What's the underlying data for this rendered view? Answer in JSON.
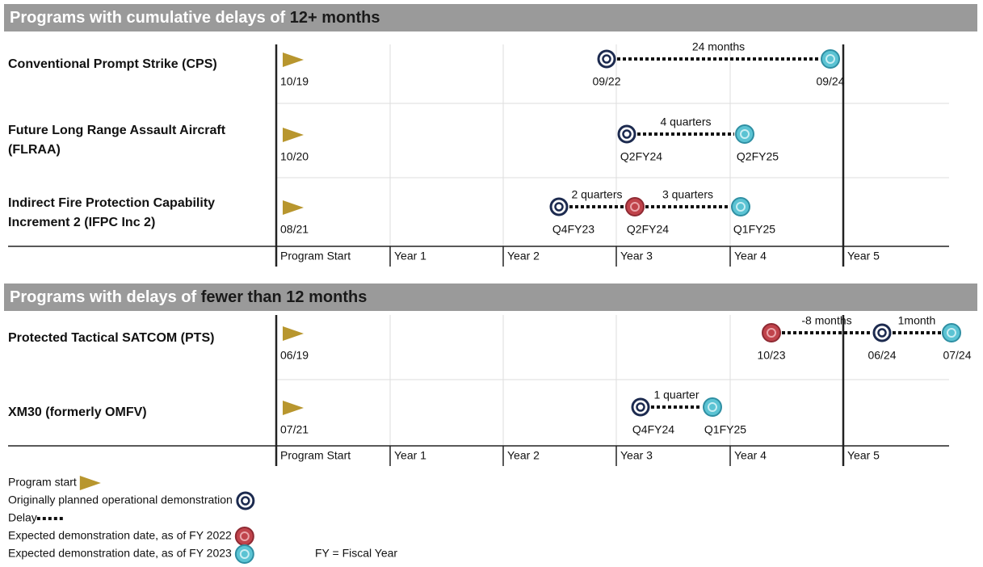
{
  "sections": [
    {
      "title_prefix": "Programs with cumulative delays of ",
      "title_emphasis": "12+ months",
      "programs": [
        {
          "name_lines": [
            "Conventional Prompt Strike (CPS)"
          ],
          "start": "10/19",
          "milestones": [
            {
              "label": "09/22",
              "kind": "planned"
            },
            {
              "label": "09/24",
              "kind": "fy2023"
            }
          ],
          "delays": [
            "24 months"
          ]
        },
        {
          "name_lines": [
            "Future Long Range Assault Aircraft",
            "(FLRAA)"
          ],
          "start": "10/20",
          "milestones": [
            {
              "label": "Q2FY24",
              "kind": "planned"
            },
            {
              "label": "Q2FY25",
              "kind": "fy2023"
            }
          ],
          "delays": [
            "4 quarters"
          ]
        },
        {
          "name_lines": [
            "Indirect Fire Protection Capability",
            "Increment 2 (IFPC Inc 2)"
          ],
          "start": "08/21",
          "milestones": [
            {
              "label": "Q4FY23",
              "kind": "planned"
            },
            {
              "label": "Q2FY24",
              "kind": "fy2022"
            },
            {
              "label": "Q1FY25",
              "kind": "fy2023"
            }
          ],
          "delays": [
            "2 quarters",
            "3 quarters"
          ]
        }
      ],
      "axis": [
        "Program Start",
        "Year 1",
        "Year 2",
        "Year 3",
        "Year 4",
        "Year 5"
      ]
    },
    {
      "title_prefix": "Programs with delays of ",
      "title_emphasis": "fewer than 12 months",
      "programs": [
        {
          "name_lines": [
            "Protected Tactical SATCOM (PTS)"
          ],
          "start": "06/19",
          "milestones": [
            {
              "label": "10/23",
              "kind": "fy2022"
            },
            {
              "label": "06/24",
              "kind": "planned"
            },
            {
              "label": "07/24",
              "kind": "fy2023"
            }
          ],
          "delays": [
            "-8 months",
            "1month"
          ]
        },
        {
          "name_lines": [
            "XM30 (formerly OMFV)"
          ],
          "start": "07/21",
          "milestones": [
            {
              "label": "Q4FY24",
              "kind": "planned"
            },
            {
              "label": "Q1FY25",
              "kind": "fy2023"
            }
          ],
          "delays": [
            "1 quarter"
          ]
        }
      ],
      "axis": [
        "Program Start",
        "Year 1",
        "Year 2",
        "Year 3",
        "Year 4",
        "Year 5"
      ]
    }
  ],
  "legend": [
    {
      "label": "Program start",
      "kind": "start"
    },
    {
      "label": "Originally planned operational demonstration",
      "kind": "planned"
    },
    {
      "label": "Delay",
      "kind": "delay"
    },
    {
      "label": "Expected demonstration date, as of FY 2022",
      "kind": "fy2022"
    },
    {
      "label": "Expected demonstration date, as of FY 2023",
      "kind": "fy2023"
    }
  ],
  "note": "FY = Fiscal Year"
}
